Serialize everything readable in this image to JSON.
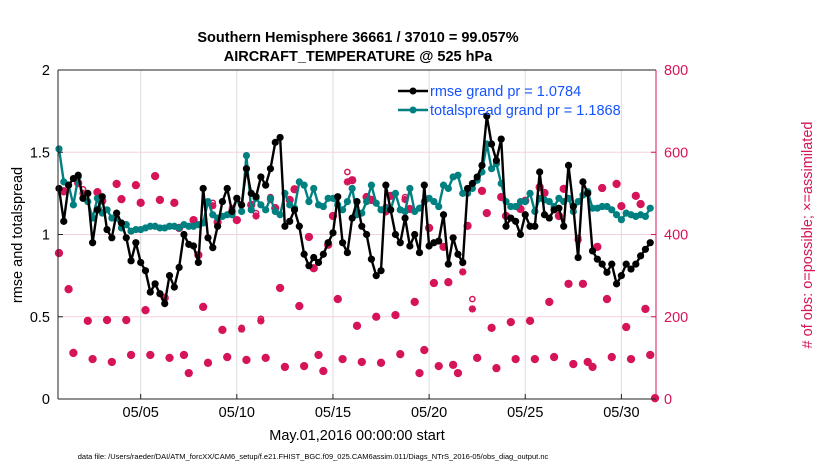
{
  "chart_data": {
    "type": "line",
    "title": [
      "Southern Hemisphere 36661 / 37010 = 99.057%",
      "AIRCRAFT_TEMPERATURE @ 525 hPa"
    ],
    "xlabel": "May.01,2016 00:00:00 start",
    "ylabel": "rmse and totalspread",
    "ylabel_right": "# of obs: o=possible; ×=assimilated",
    "footnote": "data file: /Users/raeder/DAI/ATM_forcXX/CAM6_setup/f.e21.FHIST_BGC.f09_025.CAM6assim.011/Diags_NTrS_2016-05/obs_diag_output.nc",
    "x_units": "days since May 01 00:00",
    "x_start": -0.25,
    "x_step": 0.25,
    "xlim": [
      -0.3,
      30.8
    ],
    "ylim": [
      0,
      2
    ],
    "ylim_right": [
      0,
      800
    ],
    "xticks": [
      {
        "value": 4,
        "label": "05/05"
      },
      {
        "value": 9,
        "label": "05/10"
      },
      {
        "value": 14,
        "label": "05/15"
      },
      {
        "value": 19,
        "label": "05/20"
      },
      {
        "value": 24,
        "label": "05/25"
      },
      {
        "value": 29,
        "label": "05/30"
      }
    ],
    "yticks": [
      {
        "value": 0,
        "label": "0"
      },
      {
        "value": 0.5,
        "label": "0.5"
      },
      {
        "value": 1,
        "label": "1"
      },
      {
        "value": 1.5,
        "label": "1.5"
      },
      {
        "value": 2,
        "label": "2"
      }
    ],
    "yticks_right": [
      {
        "value": 0,
        "label": "0"
      },
      {
        "value": 200,
        "label": "200"
      },
      {
        "value": 400,
        "label": "400"
      },
      {
        "value": 600,
        "label": "600"
      },
      {
        "value": 800,
        "label": "800"
      }
    ],
    "grid": true,
    "legend_position": "top-right",
    "series": [
      {
        "name": "rmse grand pr = 1.0784",
        "color": "#000000",
        "axis": "left",
        "values": [
          1.28,
          1.08,
          1.3,
          1.34,
          1.36,
          1.22,
          1.25,
          0.95,
          1.15,
          1.23,
          1.03,
          0.98,
          1.13,
          1.07,
          0.98,
          0.84,
          0.95,
          0.83,
          0.78,
          0.65,
          0.7,
          0.64,
          0.58,
          0.75,
          0.68,
          0.8,
          1.0,
          0.94,
          0.93,
          0.83,
          1.28,
          0.98,
          0.92,
          1.05,
          1.2,
          1.28,
          1.14,
          1.22,
          1.18,
          1.4,
          1.25,
          1.23,
          1.35,
          1.3,
          1.4,
          1.56,
          1.59,
          1.05,
          1.08,
          1.15,
          1.05,
          0.88,
          0.81,
          0.86,
          0.83,
          0.88,
          0.95,
          1.01,
          1.23,
          0.95,
          0.89,
          1.1,
          1.2,
          1.05,
          1.0,
          0.85,
          0.75,
          0.78,
          1.3,
          1.15,
          1.0,
          0.95,
          1.1,
          0.93,
          1.0,
          0.89,
          1.3,
          0.93,
          0.95,
          0.96,
          1.12,
          0.82,
          0.98,
          0.88,
          0.83,
          1.28,
          1.31,
          1.35,
          1.42,
          1.72,
          1.55,
          1.45,
          1.58,
          1.05,
          1.1,
          1.08,
          1.0,
          1.12,
          1.05,
          1.05,
          1.38,
          1.12,
          1.1,
          1.15,
          1.16,
          1.05,
          1.42,
          1.17,
          0.86,
          1.32,
          1.25,
          0.9,
          0.85,
          0.82,
          0.77,
          0.82,
          0.7,
          0.75,
          0.82,
          0.79,
          0.82,
          0.87,
          0.91,
          0.95
        ]
      },
      {
        "name": "totalspread grand pr = 1.1868",
        "color": "#008080",
        "axis": "left",
        "values": [
          1.52,
          1.32,
          1.3,
          1.18,
          1.35,
          1.22,
          1.2,
          1.1,
          1.22,
          1.13,
          1.15,
          1.1,
          1.1,
          1.04,
          1.06,
          1.02,
          1.03,
          1.03,
          1.04,
          1.05,
          1.05,
          1.04,
          1.04,
          1.05,
          1.05,
          1.04,
          1.06,
          1.05,
          1.05,
          1.06,
          1.07,
          1.2,
          1.12,
          1.1,
          1.11,
          1.12,
          1.12,
          1.22,
          1.14,
          1.48,
          1.15,
          1.22,
          1.18,
          1.15,
          1.22,
          1.14,
          1.12,
          1.25,
          1.18,
          1.16,
          1.32,
          1.3,
          1.2,
          1.28,
          1.18,
          1.17,
          1.22,
          1.22,
          1.18,
          1.15,
          1.2,
          1.28,
          1.12,
          1.13,
          1.2,
          1.3,
          1.19,
          1.15,
          1.16,
          1.15,
          1.25,
          1.15,
          1.14,
          1.28,
          1.14,
          1.16,
          1.2,
          1.22,
          1.2,
          1.17,
          1.3,
          1.28,
          1.35,
          1.36,
          1.25,
          1.25,
          1.28,
          1.33,
          1.38,
          1.55,
          1.4,
          1.43,
          1.31,
          1.2,
          1.17,
          1.17,
          1.2,
          1.2,
          1.25,
          1.14,
          1.22,
          1.21,
          1.2,
          1.17,
          1.22,
          1.2,
          1.22,
          1.14,
          1.2,
          1.24,
          1.26,
          1.16,
          1.16,
          1.17,
          1.17,
          1.15,
          1.12,
          1.09,
          1.13,
          1.12,
          1.11,
          1.12,
          1.11,
          1.16
        ]
      },
      {
        "name": "obs possible",
        "color": "#d6145a",
        "axis": "right",
        "marker": "o",
        "values": [
          355,
          505,
          267,
          112,
          525,
          510,
          190,
          97,
          503,
          482,
          192,
          90,
          523,
          486,
          192,
          107,
          520,
          477,
          216,
          107,
          542,
          484,
          246,
          100,
          477,
          416,
          107,
          63,
          435,
          350,
          224,
          88,
          477,
          430,
          168,
          102,
          464,
          435,
          173,
          95,
          472,
          452,
          195,
          100,
          491,
          464,
          270,
          78,
          484,
          510,
          226,
          80,
          394,
          318,
          107,
          68,
          375,
          445,
          243,
          97,
          552,
          532,
          178,
          90,
          491,
          484,
          200,
          88,
          467,
          494,
          204,
          109,
          491,
          462,
          236,
          63,
          119,
          416,
          282,
          80,
          370,
          284,
          83,
          63,
          331,
          421,
          243,
          100,
          506,
          452,
          173,
          75,
          491,
          445,
          187,
          97,
          462,
          482,
          190,
          97,
          515,
          501,
          236,
          102,
          445,
          511,
          280,
          85,
          392,
          280,
          90,
          78,
          370,
          513,
          243,
          102,
          523,
          469,
          175,
          97,
          494,
          474,
          219,
          107,
          2
        ]
      },
      {
        "name": "obs assimilated",
        "color": "#d6145a",
        "axis": "right",
        "marker": "*",
        "values": [
          355,
          505,
          267,
          112,
          525,
          500,
          190,
          97,
          503,
          482,
          192,
          90,
          523,
          486,
          192,
          107,
          520,
          477,
          216,
          107,
          542,
          484,
          246,
          100,
          477,
          416,
          107,
          63,
          435,
          350,
          224,
          88,
          470,
          430,
          168,
          102,
          458,
          435,
          170,
          95,
          472,
          445,
          190,
          100,
          485,
          464,
          270,
          78,
          484,
          510,
          226,
          80,
          394,
          318,
          107,
          68,
          375,
          445,
          243,
          97,
          528,
          532,
          178,
          90,
          491,
          484,
          200,
          88,
          455,
          494,
          204,
          109,
          485,
          462,
          236,
          63,
          119,
          416,
          282,
          80,
          370,
          284,
          83,
          63,
          309,
          421,
          219,
          100,
          506,
          452,
          173,
          75,
          491,
          445,
          187,
          97,
          462,
          482,
          190,
          97,
          515,
          501,
          236,
          102,
          445,
          511,
          280,
          85,
          387,
          280,
          90,
          78,
          370,
          513,
          243,
          102,
          523,
          469,
          175,
          97,
          494,
          474,
          219,
          107,
          2
        ]
      }
    ]
  }
}
